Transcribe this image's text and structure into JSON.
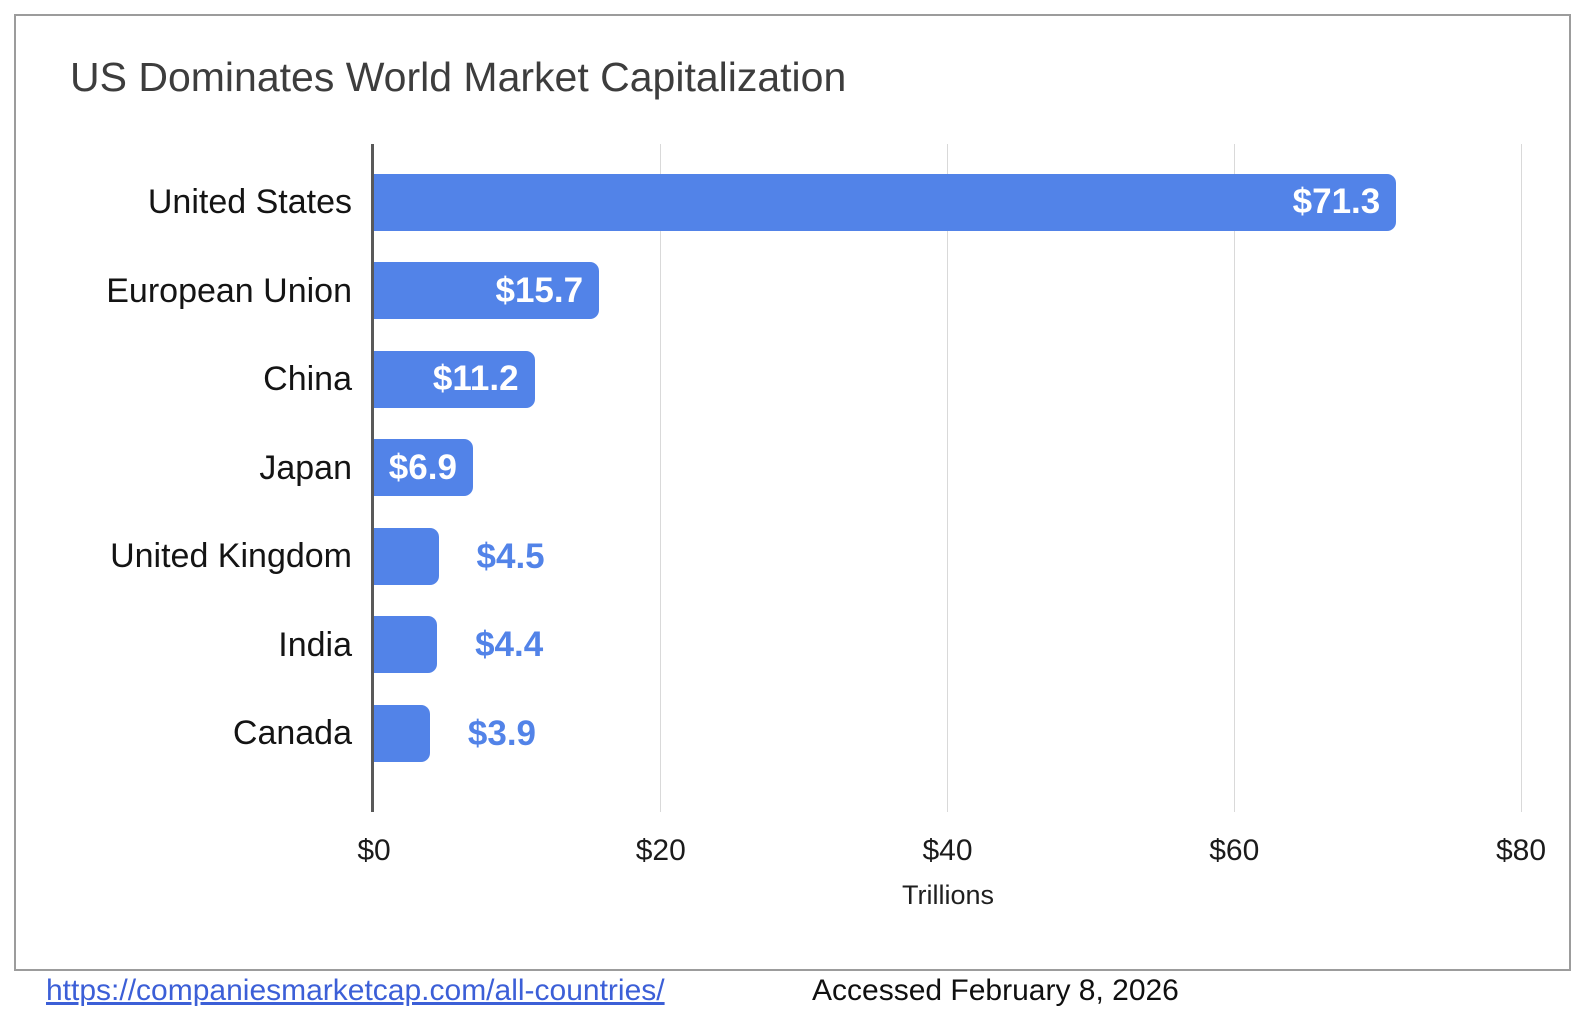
{
  "chart_data": {
    "type": "bar",
    "orientation": "horizontal",
    "title": "US Dominates World Market Capitalization",
    "categories": [
      "United States",
      "European Union",
      "China",
      "Japan",
      "United Kingdom",
      "India",
      "Canada"
    ],
    "values": [
      71.3,
      15.7,
      11.2,
      6.9,
      4.5,
      4.4,
      3.9
    ],
    "value_labels": [
      "$71.3",
      "$15.7",
      "$11.2",
      "$6.9",
      "$4.5",
      "$4.4",
      "$3.9"
    ],
    "xlabel": "Trillions",
    "ylabel": "",
    "x_ticks": [
      "$0",
      "$20",
      "$40",
      "$60",
      "$80"
    ],
    "x_tick_values": [
      0,
      20,
      40,
      60,
      80
    ],
    "xlim": [
      0,
      80
    ],
    "grid": "vertical-only",
    "legend": "none",
    "bar_color": "#5283E8",
    "value_label_inside_color": "#FFFFFF",
    "value_label_outside_color": "#5283E8"
  },
  "footer": {
    "link": "https://companiesmarketcap.com/all-countries/",
    "accessed": "Accessed February 8, 2026"
  }
}
